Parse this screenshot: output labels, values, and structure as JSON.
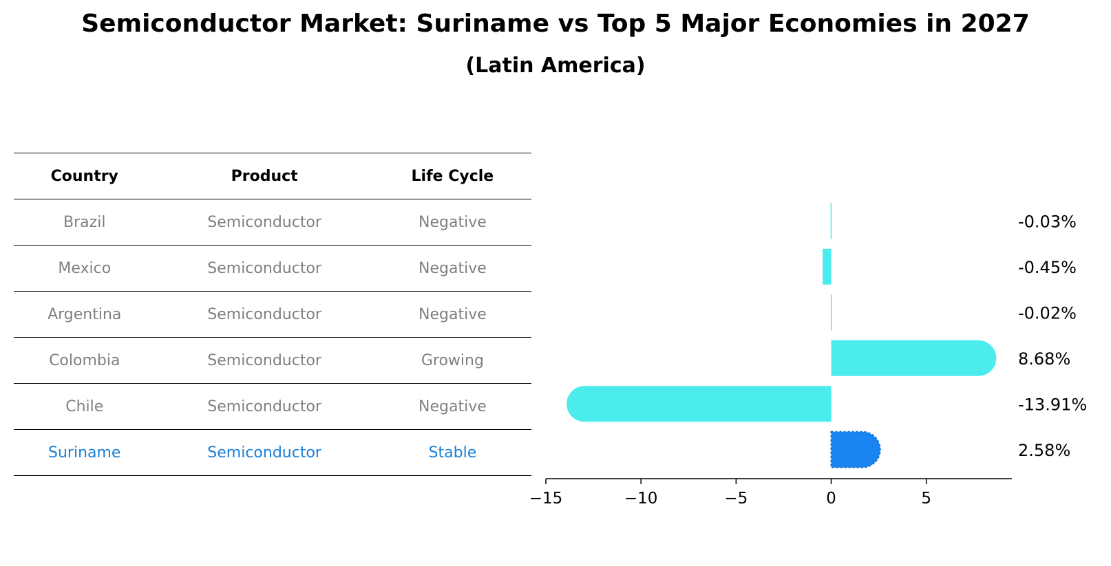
{
  "chart_data": {
    "type": "bar",
    "orientation": "horizontal",
    "title": "Semiconductor Market: Suriname vs Top 5 Major Economies in 2027",
    "subtitle": "(Latin America)",
    "table": {
      "headers": [
        "Country",
        "Product",
        "Life Cycle"
      ],
      "rows": [
        {
          "country": "Brazil",
          "product": "Semiconductor",
          "life_cycle": "Negative"
        },
        {
          "country": "Mexico",
          "product": "Semiconductor",
          "life_cycle": "Negative"
        },
        {
          "country": "Argentina",
          "product": "Semiconductor",
          "life_cycle": "Negative"
        },
        {
          "country": "Colombia",
          "product": "Semiconductor",
          "life_cycle": "Growing"
        },
        {
          "country": "Chile",
          "product": "Semiconductor",
          "life_cycle": "Negative"
        },
        {
          "country": "Suriname",
          "product": "Semiconductor",
          "life_cycle": "Stable"
        }
      ]
    },
    "categories": [
      "Brazil",
      "Mexico",
      "Argentina",
      "Colombia",
      "Chile",
      "Suriname"
    ],
    "values": [
      -0.03,
      -0.45,
      -0.02,
      8.68,
      -13.91,
      2.58
    ],
    "value_labels": [
      "-0.03%",
      "-0.45%",
      "-0.02%",
      "8.68%",
      "-13.91%",
      "2.58%"
    ],
    "highlight": "Suriname",
    "xlim": [
      -15,
      9.5
    ],
    "xticks": [
      -15,
      -10,
      -5,
      0,
      5
    ],
    "xtick_labels": [
      "−15",
      "−10",
      "−5",
      "0",
      "5"
    ],
    "grid": false,
    "colors": {
      "default": "#4cecec",
      "highlight": "#1a85f0",
      "highlight_text": "#1a7fd6",
      "muted_text": "#808080"
    }
  }
}
